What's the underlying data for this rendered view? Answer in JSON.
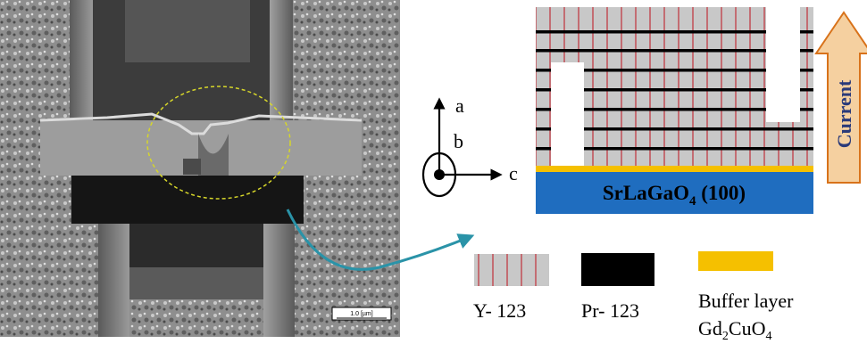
{
  "sem": {
    "scale_bar_label": "1.0 [µm]"
  },
  "axes": {
    "a_label": "a",
    "b_label": "b",
    "c_label": "c"
  },
  "schematic": {
    "substrate_label_main": "SrLaGaO",
    "substrate_label_sub": "4",
    "substrate_label_tail": " (100)",
    "current_label": "Current"
  },
  "legend": {
    "y123_label": "Y- 123",
    "pr123_label": "Pr- 123",
    "buffer_label_line1": "Buffer layer",
    "buffer_label_line2_main": "Gd",
    "buffer_label_line2_sub1": "2",
    "buffer_label_line2_mid": "CuO",
    "buffer_label_line2_sub2": "4"
  },
  "colors": {
    "substrate": "#1f6dbf",
    "buffer": "#f5c000",
    "y123_fill": "#c8c8c8",
    "y123_lines": "#c0303a",
    "pr123": "#000000",
    "current_arrow_fill": "#f5d0a0",
    "current_arrow_stroke": "#d8721a",
    "current_text": "#2a3a7a",
    "connector_arrow": "#2a93a8"
  }
}
